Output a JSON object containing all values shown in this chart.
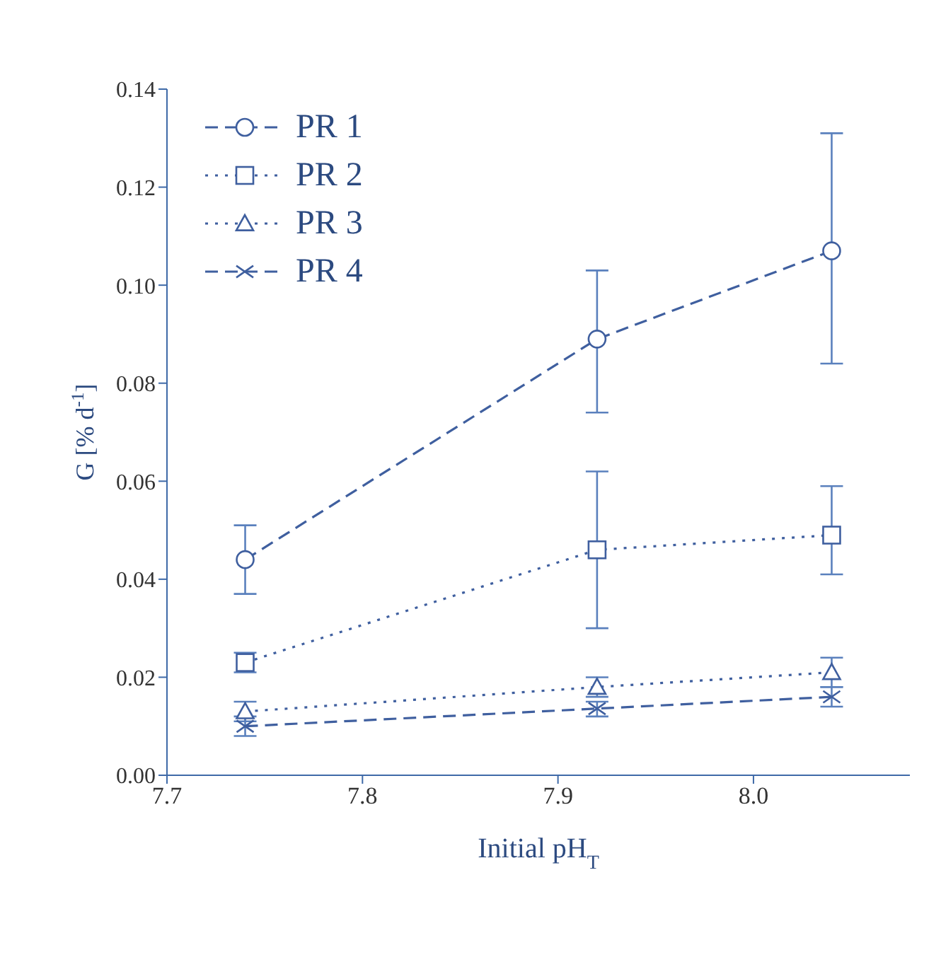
{
  "chart_data": {
    "type": "line",
    "xlabel": "Initial pH$_{T}$",
    "ylabel": "G [% d$^{-1}$]",
    "xlim": [
      7.7,
      8.08
    ],
    "xticks": [
      7.7,
      7.8,
      7.9,
      {
        "value": 8,
        "label": "8.0"
      }
    ],
    "ylim": [
      0,
      0.14
    ],
    "yticks": [
      {
        "value": 0,
        "label": "0.00"
      },
      {
        "value": 0.02,
        "label": "0.02"
      },
      {
        "value": 0.04,
        "label": "0.04"
      },
      {
        "value": 0.06,
        "label": "0.06"
      },
      {
        "value": 0.08,
        "label": "0.08"
      },
      {
        "value": 0.1,
        "label": "0.10"
      },
      {
        "value": 0.12,
        "label": "0.12"
      },
      {
        "value": 0.14,
        "label": "0.14"
      }
    ],
    "x": [
      7.74,
      7.92,
      8.04
    ],
    "legend": "top left",
    "grid": false,
    "series": [
      {
        "name": "PR 1",
        "color": "#3f5f9f",
        "values": [
          0.044,
          0.089,
          0.107
        ],
        "errors": [
          [
            0.037,
            0.051
          ],
          [
            0.074,
            0.103
          ],
          [
            0.084,
            0.131
          ]
        ],
        "marker": "circle",
        "line_style": "dashed"
      },
      {
        "name": "PR 2",
        "color": "#3f5f9f",
        "values": [
          0.023,
          0.046,
          0.049
        ],
        "errors": [
          [
            0.021,
            0.025
          ],
          [
            0.03,
            0.062
          ],
          [
            0.041,
            0.059
          ]
        ],
        "marker": "square",
        "line_style": "dotted"
      },
      {
        "name": "PR 3",
        "color": "#3f5f9f",
        "values": [
          0.013,
          0.018,
          0.021
        ],
        "errors": [
          [
            0.011,
            0.015
          ],
          [
            0.016,
            0.02
          ],
          [
            0.018,
            0.024
          ]
        ],
        "marker": "triangle",
        "line_style": "dotted"
      },
      {
        "name": "PR 4",
        "color": "#3f5f9f",
        "values": [
          0.01,
          0.0136,
          0.016
        ],
        "errors": [
          [
            0.008,
            0.012
          ],
          [
            0.012,
            0.015
          ],
          [
            0.014,
            0.018
          ]
        ],
        "marker": "cross",
        "line_style": "dashed"
      }
    ]
  }
}
